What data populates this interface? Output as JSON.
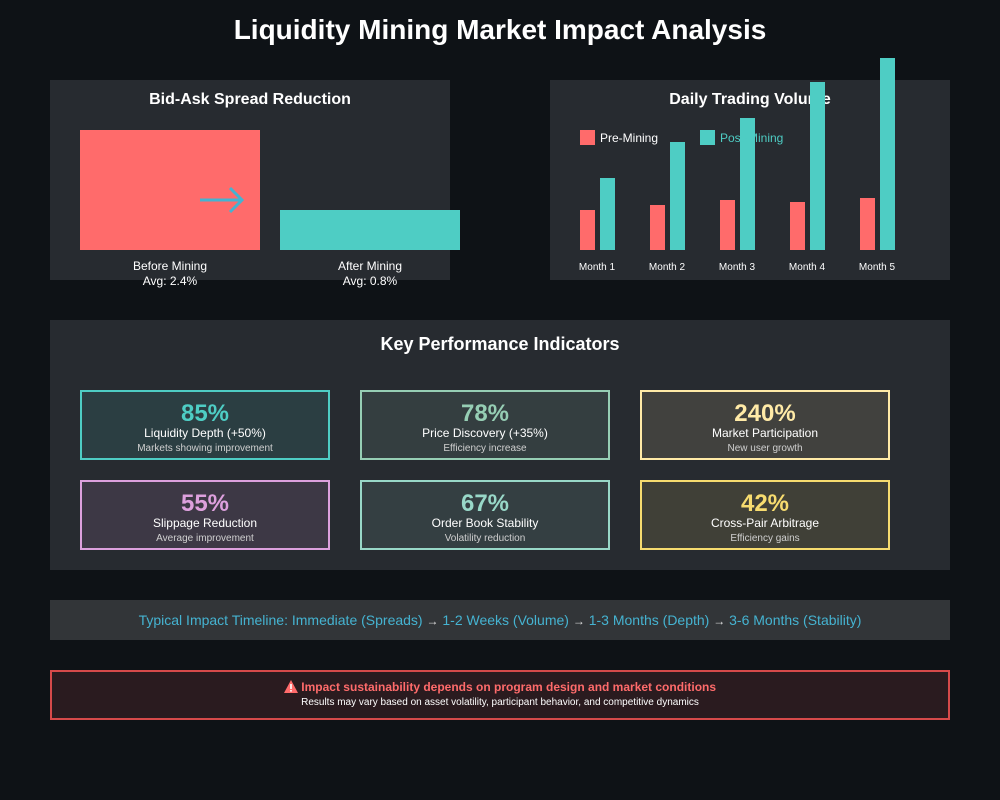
{
  "title": "Liquidity Mining Market Impact Analysis",
  "chart_data": [
    {
      "type": "bar",
      "title": "Bid-Ask Spread Reduction",
      "categories": [
        "Before Mining",
        "After Mining"
      ],
      "values": [
        2.4,
        0.8
      ],
      "value_labels": [
        "Avg: 2.4%",
        "Avg: 0.8%"
      ],
      "colors": [
        "#ff6b6b",
        "#4ecdc4"
      ]
    },
    {
      "type": "bar",
      "title": "Daily Trading Volume",
      "categories": [
        "Month 1",
        "Month 2",
        "Month 3",
        "Month 4",
        "Month 5"
      ],
      "series": [
        {
          "name": "Pre-Mining",
          "color": "#ff6b6b",
          "values": [
            40,
            45,
            50,
            48,
            52
          ]
        },
        {
          "name": "Post-Mining",
          "color": "#4ecdc4",
          "values": [
            72,
            108,
            132,
            168,
            192
          ]
        }
      ]
    }
  ],
  "kpi": {
    "title": "Key Performance Indicators",
    "cards": [
      {
        "value": "85%",
        "label": "Liquidity Depth (+50%)",
        "sub": "Markets showing improvement",
        "color": "#4ecdc4"
      },
      {
        "value": "78%",
        "label": "Price Discovery (+35%)",
        "sub": "Efficiency increase",
        "color": "#96ceb4"
      },
      {
        "value": "240%",
        "label": "Market Participation",
        "sub": "New user growth",
        "color": "#ffeaa7"
      },
      {
        "value": "55%",
        "label": "Slippage Reduction",
        "sub": "Average improvement",
        "color": "#dda0dd"
      },
      {
        "value": "67%",
        "label": "Order Book Stability",
        "sub": "Volatility reduction",
        "color": "#98d8c8"
      },
      {
        "value": "42%",
        "label": "Cross-Pair Arbitrage",
        "sub": "Efficiency gains",
        "color": "#f7dc6f"
      }
    ]
  },
  "timeline": {
    "prefix": "Typical Impact Timeline: ",
    "steps": [
      "Immediate (Spreads)",
      "1-2 Weeks (Volume)",
      "1-3 Months (Depth)",
      "3-6 Months (Stability)"
    ],
    "arrow": "→"
  },
  "warning": {
    "icon": "warning-triangle-icon",
    "main": "Impact sustainability depends on program design and market conditions",
    "sub": "Results may vary based on asset volatility, participant behavior, and competitive dynamics"
  }
}
